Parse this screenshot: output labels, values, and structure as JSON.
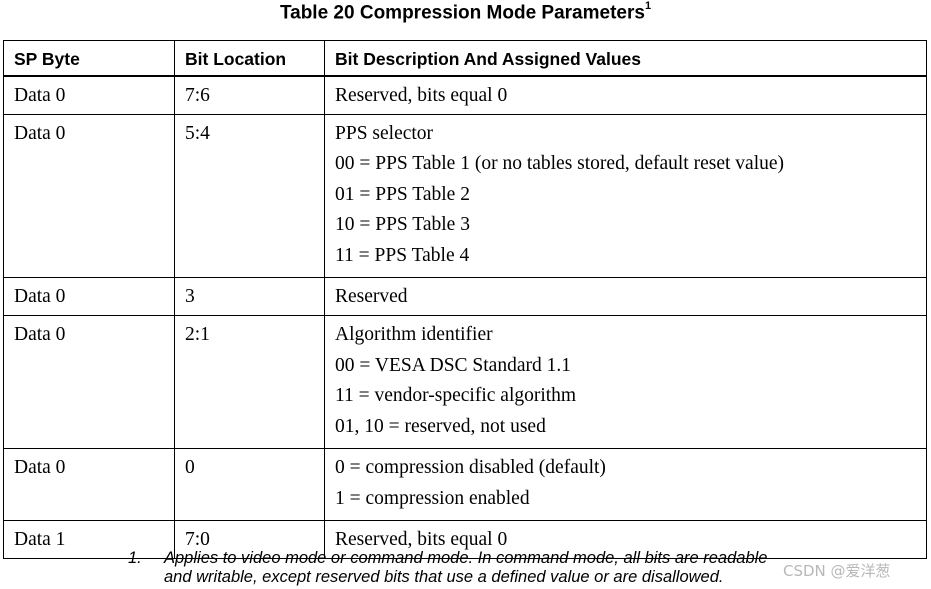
{
  "title": "Table 20 Compression Mode Parameters",
  "title_superscript": "1",
  "table": {
    "headers": [
      "SP Byte",
      "Bit Location",
      "Bit Description And Assigned Values"
    ],
    "rows": [
      {
        "sp_byte": "Data 0",
        "bit_location": "7:6",
        "description": [
          "Reserved, bits equal 0"
        ]
      },
      {
        "sp_byte": "Data 0",
        "bit_location": "5:4",
        "description": [
          "PPS selector",
          "00 = PPS Table 1 (or no tables stored, default reset value)",
          "01 = PPS Table 2",
          "10 = PPS Table 3",
          "11 = PPS Table 4"
        ]
      },
      {
        "sp_byte": "Data 0",
        "bit_location": "3",
        "description": [
          "Reserved"
        ]
      },
      {
        "sp_byte": "Data 0",
        "bit_location": "2:1",
        "description": [
          "Algorithm identifier",
          "00 = VESA DSC Standard 1.1",
          "11 = vendor-specific algorithm",
          "01, 10 = reserved, not used"
        ]
      },
      {
        "sp_byte": "Data 0",
        "bit_location": "0",
        "description": [
          "0 = compression disabled (default)",
          "1 = compression enabled"
        ]
      },
      {
        "sp_byte": "Data 1",
        "bit_location": "7:0",
        "description": [
          "Reserved, bits equal 0"
        ]
      }
    ]
  },
  "footnote": {
    "number": "1.",
    "text_line1": "Applies to video mode or command mode. In command mode, all bits are readable",
    "text_line2": "and writable, except reserved bits that use a defined value or are disallowed."
  },
  "watermark": "CSDN @爱洋葱"
}
